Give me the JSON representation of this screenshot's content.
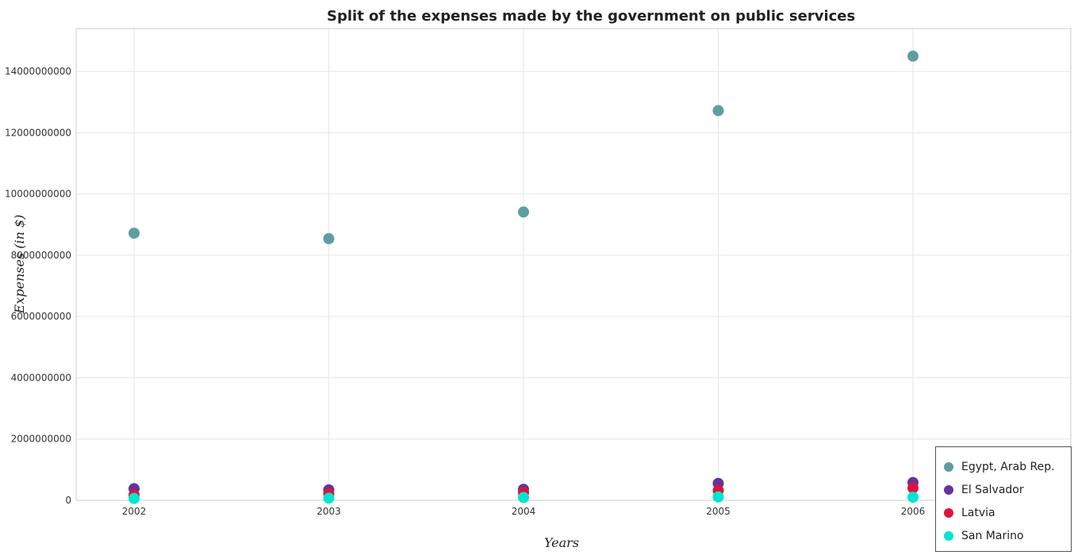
{
  "chart_data": {
    "type": "scatter",
    "title": "Split of the expenses made by the government on public services",
    "xlabel": "Years",
    "ylabel": "Expenses (in $)",
    "categories": [
      "2002",
      "2003",
      "2004",
      "2005",
      "2006"
    ],
    "ylim": [
      0,
      15400000000
    ],
    "yticks": [
      0,
      2000000000,
      4000000000,
      6000000000,
      8000000000,
      10000000000,
      12000000000,
      14000000000
    ],
    "ytick_labels": [
      "0",
      "2000000000",
      "4000000000",
      "6000000000",
      "8000000000",
      "10000000000",
      "12000000000",
      "14000000000"
    ],
    "grid": true,
    "legend_position": "bottom-right",
    "series": [
      {
        "name": "Egypt, Arab Rep.",
        "color": "#5f9ea0",
        "values": [
          8720000000,
          8540000000,
          9410000000,
          12720000000,
          14500000000
        ]
      },
      {
        "name": "El Salvador",
        "color": "#663399",
        "values": [
          380000000,
          340000000,
          360000000,
          550000000,
          580000000
        ]
      },
      {
        "name": "Latvia",
        "color": "#dc143c",
        "values": [
          170000000,
          210000000,
          250000000,
          320000000,
          400000000
        ]
      },
      {
        "name": "San Marino",
        "color": "#00e5d0",
        "values": [
          60000000,
          70000000,
          90000000,
          110000000,
          100000000
        ]
      }
    ]
  }
}
